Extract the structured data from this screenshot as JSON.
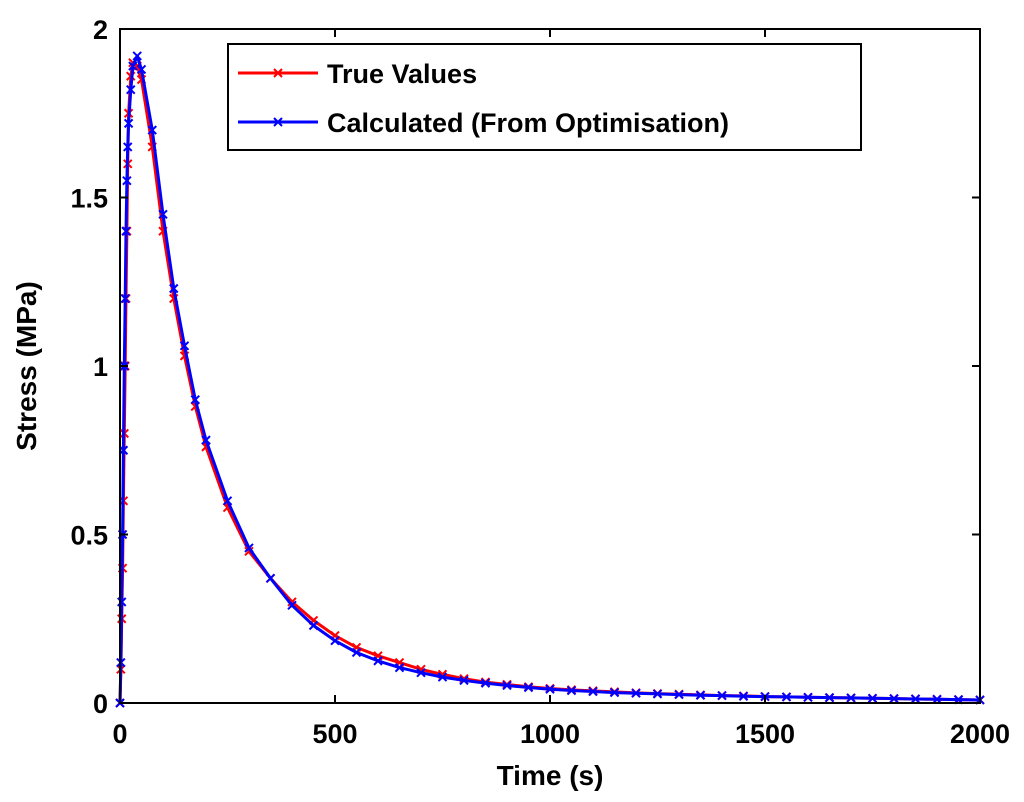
{
  "chart_data": {
    "type": "line",
    "title": "",
    "xlabel": "Time (s)",
    "ylabel": "Stress (MPa)",
    "xlim": [
      0,
      2000
    ],
    "ylim": [
      0,
      2
    ],
    "xticks": [
      0,
      500,
      1000,
      1500,
      2000
    ],
    "xtick_labels": [
      "0",
      "500",
      "1000",
      "1500",
      "2000"
    ],
    "yticks": [
      0,
      0.5,
      1,
      1.5,
      2
    ],
    "ytick_labels": [
      "0",
      "0.5",
      "1",
      "1.5",
      "2"
    ],
    "grid": false,
    "legend_position": "top-right",
    "series": [
      {
        "name": "True Values",
        "color": "#ff0000",
        "marker": "x",
        "x": [
          0,
          2,
          4,
          6,
          8,
          10,
          12,
          14,
          16,
          18,
          20,
          25,
          30,
          40,
          50,
          75,
          100,
          125,
          150,
          175,
          200,
          250,
          300,
          350,
          400,
          450,
          500,
          550,
          600,
          650,
          700,
          750,
          800,
          850,
          900,
          950,
          1000,
          1050,
          1100,
          1150,
          1200,
          1250,
          1300,
          1350,
          1400,
          1450,
          1500,
          1550,
          1600,
          1650,
          1700,
          1750,
          1800,
          1850,
          1900,
          1950,
          2000
        ],
        "y": [
          0,
          0.1,
          0.25,
          0.4,
          0.6,
          0.8,
          1.0,
          1.2,
          1.4,
          1.6,
          1.75,
          1.86,
          1.9,
          1.89,
          1.85,
          1.65,
          1.4,
          1.2,
          1.03,
          0.88,
          0.76,
          0.58,
          0.45,
          0.37,
          0.3,
          0.245,
          0.2,
          0.165,
          0.14,
          0.12,
          0.1,
          0.085,
          0.072,
          0.062,
          0.055,
          0.048,
          0.043,
          0.039,
          0.036,
          0.033,
          0.03,
          0.028,
          0.026,
          0.024,
          0.022,
          0.021,
          0.019,
          0.018,
          0.017,
          0.016,
          0.015,
          0.014,
          0.013,
          0.012,
          0.011,
          0.01,
          0.009
        ]
      },
      {
        "name": "Calculated (From Optimisation)",
        "color": "#0000ff",
        "marker": "x",
        "x": [
          0,
          2,
          4,
          6,
          8,
          10,
          12,
          14,
          16,
          18,
          20,
          25,
          30,
          40,
          50,
          75,
          100,
          125,
          150,
          175,
          200,
          250,
          300,
          350,
          400,
          450,
          500,
          550,
          600,
          650,
          700,
          750,
          800,
          850,
          900,
          950,
          1000,
          1050,
          1100,
          1150,
          1200,
          1250,
          1300,
          1350,
          1400,
          1450,
          1500,
          1550,
          1600,
          1650,
          1700,
          1750,
          1800,
          1850,
          1900,
          1950,
          2000
        ],
        "y": [
          0,
          0.12,
          0.3,
          0.5,
          0.75,
          1.0,
          1.2,
          1.4,
          1.55,
          1.65,
          1.72,
          1.82,
          1.89,
          1.92,
          1.88,
          1.7,
          1.45,
          1.23,
          1.06,
          0.9,
          0.78,
          0.6,
          0.46,
          0.37,
          0.29,
          0.23,
          0.185,
          0.15,
          0.125,
          0.105,
          0.09,
          0.077,
          0.067,
          0.059,
          0.052,
          0.046,
          0.041,
          0.037,
          0.034,
          0.031,
          0.029,
          0.027,
          0.025,
          0.023,
          0.022,
          0.02,
          0.019,
          0.018,
          0.017,
          0.016,
          0.015,
          0.014,
          0.013,
          0.012,
          0.011,
          0.01,
          0.009
        ]
      }
    ]
  }
}
